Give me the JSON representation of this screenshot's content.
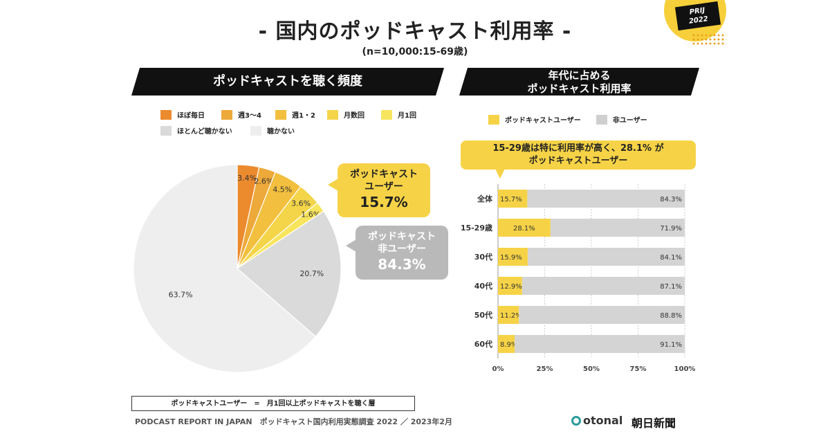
{
  "header": {
    "title": "- 国内のポッドキャスト利用率 -",
    "subtitle": "(n=10,000:15-69歳)",
    "badge_line1": "PRIJ",
    "badge_line2": "2022"
  },
  "left_panel": {
    "banner": "ポッドキャストを聴く頻度",
    "callout_users": {
      "line1": "ポッドキャスト",
      "line2": "ユーザー",
      "value": "15.7%"
    },
    "callout_nonusers": {
      "line1": "ポッドキャスト",
      "line2": "非ユーザー",
      "value": "84.3%"
    }
  },
  "right_panel": {
    "banner_line1": "年代に占める",
    "banner_line2": "ポッドキャスト利用率",
    "legend": [
      {
        "label": "ポッドキャストユーザー",
        "color": "#f6d346"
      },
      {
        "label": "非ユーザー",
        "color": "#cfcfcf"
      }
    ],
    "highlight_line1": "15-29歳は特に利用率が高く、28.1% が",
    "highlight_line2": "ポッドキャストユーザー"
  },
  "chart_data": [
    {
      "type": "pie",
      "title": "ポッドキャストを聴く頻度",
      "slices": [
        {
          "label": "ほぼ毎日",
          "value": 3.4,
          "display": "3.4%",
          "color": "#ec8a2e"
        },
        {
          "label": "週3～4",
          "value": 2.6,
          "display": "2.6%",
          "color": "#eda93a"
        },
        {
          "label": "週1・2",
          "value": 4.5,
          "display": "4.5%",
          "color": "#f2bf3e"
        },
        {
          "label": "月数回",
          "value": 3.6,
          "display": "3.6%",
          "color": "#f4d54a"
        },
        {
          "label": "月1回",
          "value": 1.6,
          "display": "1.6%",
          "color": "#f8e55e"
        },
        {
          "label": "ほとんど聴かない",
          "value": 20.7,
          "display": "20.7%",
          "color": "#dadada"
        },
        {
          "label": "聴かない",
          "value": 63.7,
          "display": "63.7%",
          "color": "#eeeeee"
        }
      ]
    },
    {
      "type": "bar",
      "orientation": "horizontal",
      "stacked": true,
      "categories": [
        "全体",
        "15-29歳",
        "30代",
        "40代",
        "50代",
        "60代"
      ],
      "series": [
        {
          "name": "ポッドキャストユーザー",
          "values": [
            15.7,
            28.1,
            15.9,
            12.9,
            11.2,
            8.9
          ],
          "labels": [
            "15.7%",
            "28.1%",
            "15.9%",
            "12.9%",
            "11.2%",
            "8.9%"
          ],
          "color": "#f6d346"
        },
        {
          "name": "非ユーザー",
          "values": [
            84.3,
            71.9,
            84.1,
            87.1,
            88.8,
            91.1
          ],
          "labels": [
            "84.3%",
            "71.9%",
            "84.1%",
            "87.1%",
            "88.8%",
            "91.1%"
          ],
          "color": "#d4d4d4"
        }
      ],
      "xlim": [
        0,
        100
      ],
      "xticks": [
        "0%",
        "25%",
        "50%",
        "75%",
        "100%"
      ],
      "grid": true
    }
  ],
  "footer": {
    "definition": "ポッドキャストユーザー　=　月1回以上ポッドキャストを聴く層",
    "source": "PODCAST REPORT IN JAPAN　ポッドキャスト国内利用実態調査 2022 ／ 2023年2月",
    "logo_otonal": "otonal",
    "logo_asahi": "朝日新聞"
  }
}
